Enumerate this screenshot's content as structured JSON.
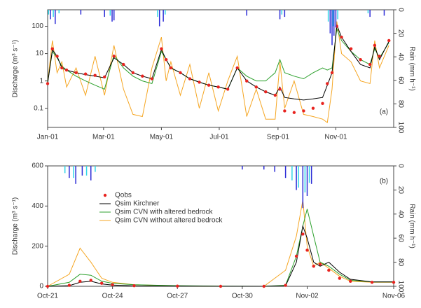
{
  "chart_data": [
    {
      "type": "line",
      "log_y": true,
      "annotation": "(a)",
      "y_label": "Discharge (m³ s⁻¹)",
      "y2_label": "Rain (mm h⁻¹)",
      "xlim": [
        0,
        365
      ],
      "xticks": [
        {
          "value": 0,
          "label": "Jan-01"
        },
        {
          "value": 59,
          "label": "Mar-01"
        },
        {
          "value": 120,
          "label": "May-01"
        },
        {
          "value": 181,
          "label": "Jul-01"
        },
        {
          "value": 243,
          "label": "Sep-01"
        },
        {
          "value": 304,
          "label": "Nov-01"
        }
      ],
      "ylim": [
        0.02,
        400
      ],
      "yticks": [
        0.1,
        1,
        10,
        100
      ],
      "y2lim": [
        100,
        0
      ],
      "y2ticks": [
        0,
        20,
        40,
        60,
        80,
        100
      ],
      "x": [
        0,
        5,
        10,
        15,
        20,
        30,
        40,
        50,
        60,
        70,
        80,
        90,
        100,
        110,
        120,
        125,
        130,
        140,
        150,
        160,
        170,
        180,
        190,
        200,
        210,
        220,
        230,
        240,
        245,
        250,
        260,
        270,
        280,
        290,
        295,
        300,
        305,
        310,
        320,
        330,
        340,
        345,
        350,
        360
      ],
      "series": [
        {
          "style": "line",
          "color": "#f5a623",
          "values": [
            0.9,
            30,
            2,
            5,
            0.6,
            3,
            0.3,
            8,
            0.3,
            20,
            0.5,
            0.06,
            0.05,
            3,
            40,
            1,
            5,
            0.3,
            4,
            0.1,
            2,
            0.08,
            1,
            8,
            0.05,
            0.5,
            0.04,
            0.04,
            5,
            0.1,
            1,
            0.06,
            0.05,
            0.04,
            0.03,
            0.5,
            150,
            10,
            5,
            1,
            0.8,
            30,
            3,
            20
          ]
        },
        {
          "style": "line",
          "color": "#2ca02c",
          "values": [
            0.9,
            12,
            7,
            3.5,
            2.5,
            1.5,
            1,
            0.7,
            0.5,
            9,
            3,
            1.5,
            1,
            0.8,
            12,
            6,
            3,
            2,
            1.2,
            0.9,
            0.7,
            0.6,
            0.5,
            3,
            1.5,
            1,
            1,
            2,
            6,
            2,
            1.5,
            1.2,
            2,
            3,
            2.5,
            3,
            80,
            30,
            12,
            6,
            4,
            15,
            7,
            25
          ]
        },
        {
          "style": "line",
          "color": "#000000",
          "values": [
            0.8,
            14,
            8,
            3,
            2.5,
            2,
            1.7,
            1.5,
            1.3,
            7,
            4,
            2,
            1.5,
            1.2,
            14,
            6,
            3,
            2,
            1.2,
            0.9,
            0.7,
            0.6,
            0.5,
            3,
            1,
            0.6,
            0.4,
            0.3,
            0.6,
            0.25,
            0.22,
            0.2,
            0.22,
            0.25,
            0.7,
            2,
            110,
            40,
            12,
            4,
            3,
            18,
            6,
            28
          ]
        },
        {
          "style": "points",
          "color": "#e8231f",
          "values": [
            0.8,
            15,
            8,
            3,
            2.5,
            2,
            1.8,
            1.6,
            1.4,
            8,
            4,
            2,
            1.5,
            1.2,
            15,
            6,
            3,
            2,
            1.2,
            0.9,
            0.7,
            0.6,
            0.5,
            3,
            1,
            0.6,
            0.4,
            0.3,
            0.5,
            0.08,
            0.07,
            0.08,
            0.1,
            0.15,
            0.8,
            2,
            100,
            40,
            15,
            6,
            4,
            20,
            8,
            30
          ]
        },
        {
          "style": "bars",
          "axis": "y2",
          "color": "#2b2bd6",
          "x": [
            3,
            8,
            35,
            60,
            68,
            70,
            118,
            122,
            210,
            245,
            250,
            298,
            300,
            302,
            304,
            340,
            355
          ],
          "values": [
            8,
            12,
            4,
            6,
            10,
            9,
            14,
            10,
            5,
            8,
            6,
            20,
            30,
            22,
            15,
            6,
            5
          ]
        },
        {
          "style": "bars",
          "axis": "y2",
          "color": "#33d6e8",
          "x": [
            1,
            6,
            12,
            66,
            116,
            124,
            247,
            296,
            301,
            306,
            338
          ],
          "values": [
            4,
            6,
            3,
            5,
            6,
            4,
            4,
            10,
            14,
            8,
            3
          ]
        }
      ]
    },
    {
      "type": "line",
      "log_y": false,
      "annotation": "(b)",
      "y_label": "Discharge (m³ s⁻¹)",
      "y2_label": "Rain (mm h⁻¹)",
      "xlim": [
        0,
        16
      ],
      "xticks": [
        {
          "value": 0,
          "label": "Oct-21"
        },
        {
          "value": 3,
          "label": "Oct-24"
        },
        {
          "value": 6,
          "label": "Oct-27"
        },
        {
          "value": 9,
          "label": "Oct-30"
        },
        {
          "value": 12,
          "label": "Nov-02"
        },
        {
          "value": 16,
          "label": "Nov-06"
        }
      ],
      "ylim": [
        0,
        600
      ],
      "yticks": [
        0,
        200,
        400,
        600
      ],
      "y2lim": [
        100,
        0
      ],
      "y2ticks": [
        0,
        20,
        40,
        60,
        80,
        100
      ],
      "x": [
        0,
        1,
        1.5,
        2,
        2.5,
        3,
        4,
        6,
        8,
        10,
        11,
        11.5,
        11.8,
        12,
        12.3,
        12.6,
        13,
        13.5,
        14,
        15,
        16
      ],
      "series": [
        {
          "name": "Qsim CVN without altered bedrock",
          "style": "line",
          "color": "#f5a623",
          "values": [
            0,
            60,
            190,
            120,
            40,
            20,
            8,
            2,
            0,
            0,
            80,
            250,
            430,
            200,
            100,
            120,
            90,
            50,
            25,
            20,
            20
          ]
        },
        {
          "name": "Qsim CVN with altered bedrock",
          "style": "line",
          "color": "#2ca02c",
          "values": [
            0,
            20,
            60,
            55,
            25,
            15,
            8,
            3,
            1,
            0,
            5,
            150,
            300,
            385,
            250,
            120,
            100,
            60,
            30,
            22,
            22
          ]
        },
        {
          "name": "Qsim Kirchner",
          "style": "line",
          "color": "#000000",
          "values": [
            0,
            3,
            20,
            25,
            12,
            6,
            2,
            1,
            0,
            0,
            2,
            120,
            300,
            240,
            120,
            100,
            120,
            70,
            35,
            22,
            22
          ]
        },
        {
          "name": "Qobs",
          "style": "points",
          "color": "#e8231f",
          "values": [
            0,
            5,
            25,
            30,
            15,
            8,
            3,
            1,
            0,
            0,
            5,
            150,
            260,
            180,
            100,
            110,
            80,
            40,
            25,
            20,
            20
          ]
        },
        {
          "style": "bars",
          "axis": "y2",
          "color": "#2b2bd6",
          "x": [
            1,
            1.3,
            1.6,
            2,
            9,
            10,
            10.5,
            11,
            11.5,
            11.8,
            12,
            12.2
          ],
          "values": [
            10,
            15,
            8,
            12,
            3,
            3,
            5,
            10,
            20,
            35,
            25,
            15
          ]
        },
        {
          "style": "bars",
          "axis": "y2",
          "color": "#33d6e8",
          "x": [
            0.8,
            1.2,
            1.8,
            2.2,
            11.3,
            11.6,
            11.9,
            12.1
          ],
          "values": [
            6,
            10,
            8,
            5,
            12,
            18,
            22,
            14
          ]
        }
      ]
    }
  ]
}
